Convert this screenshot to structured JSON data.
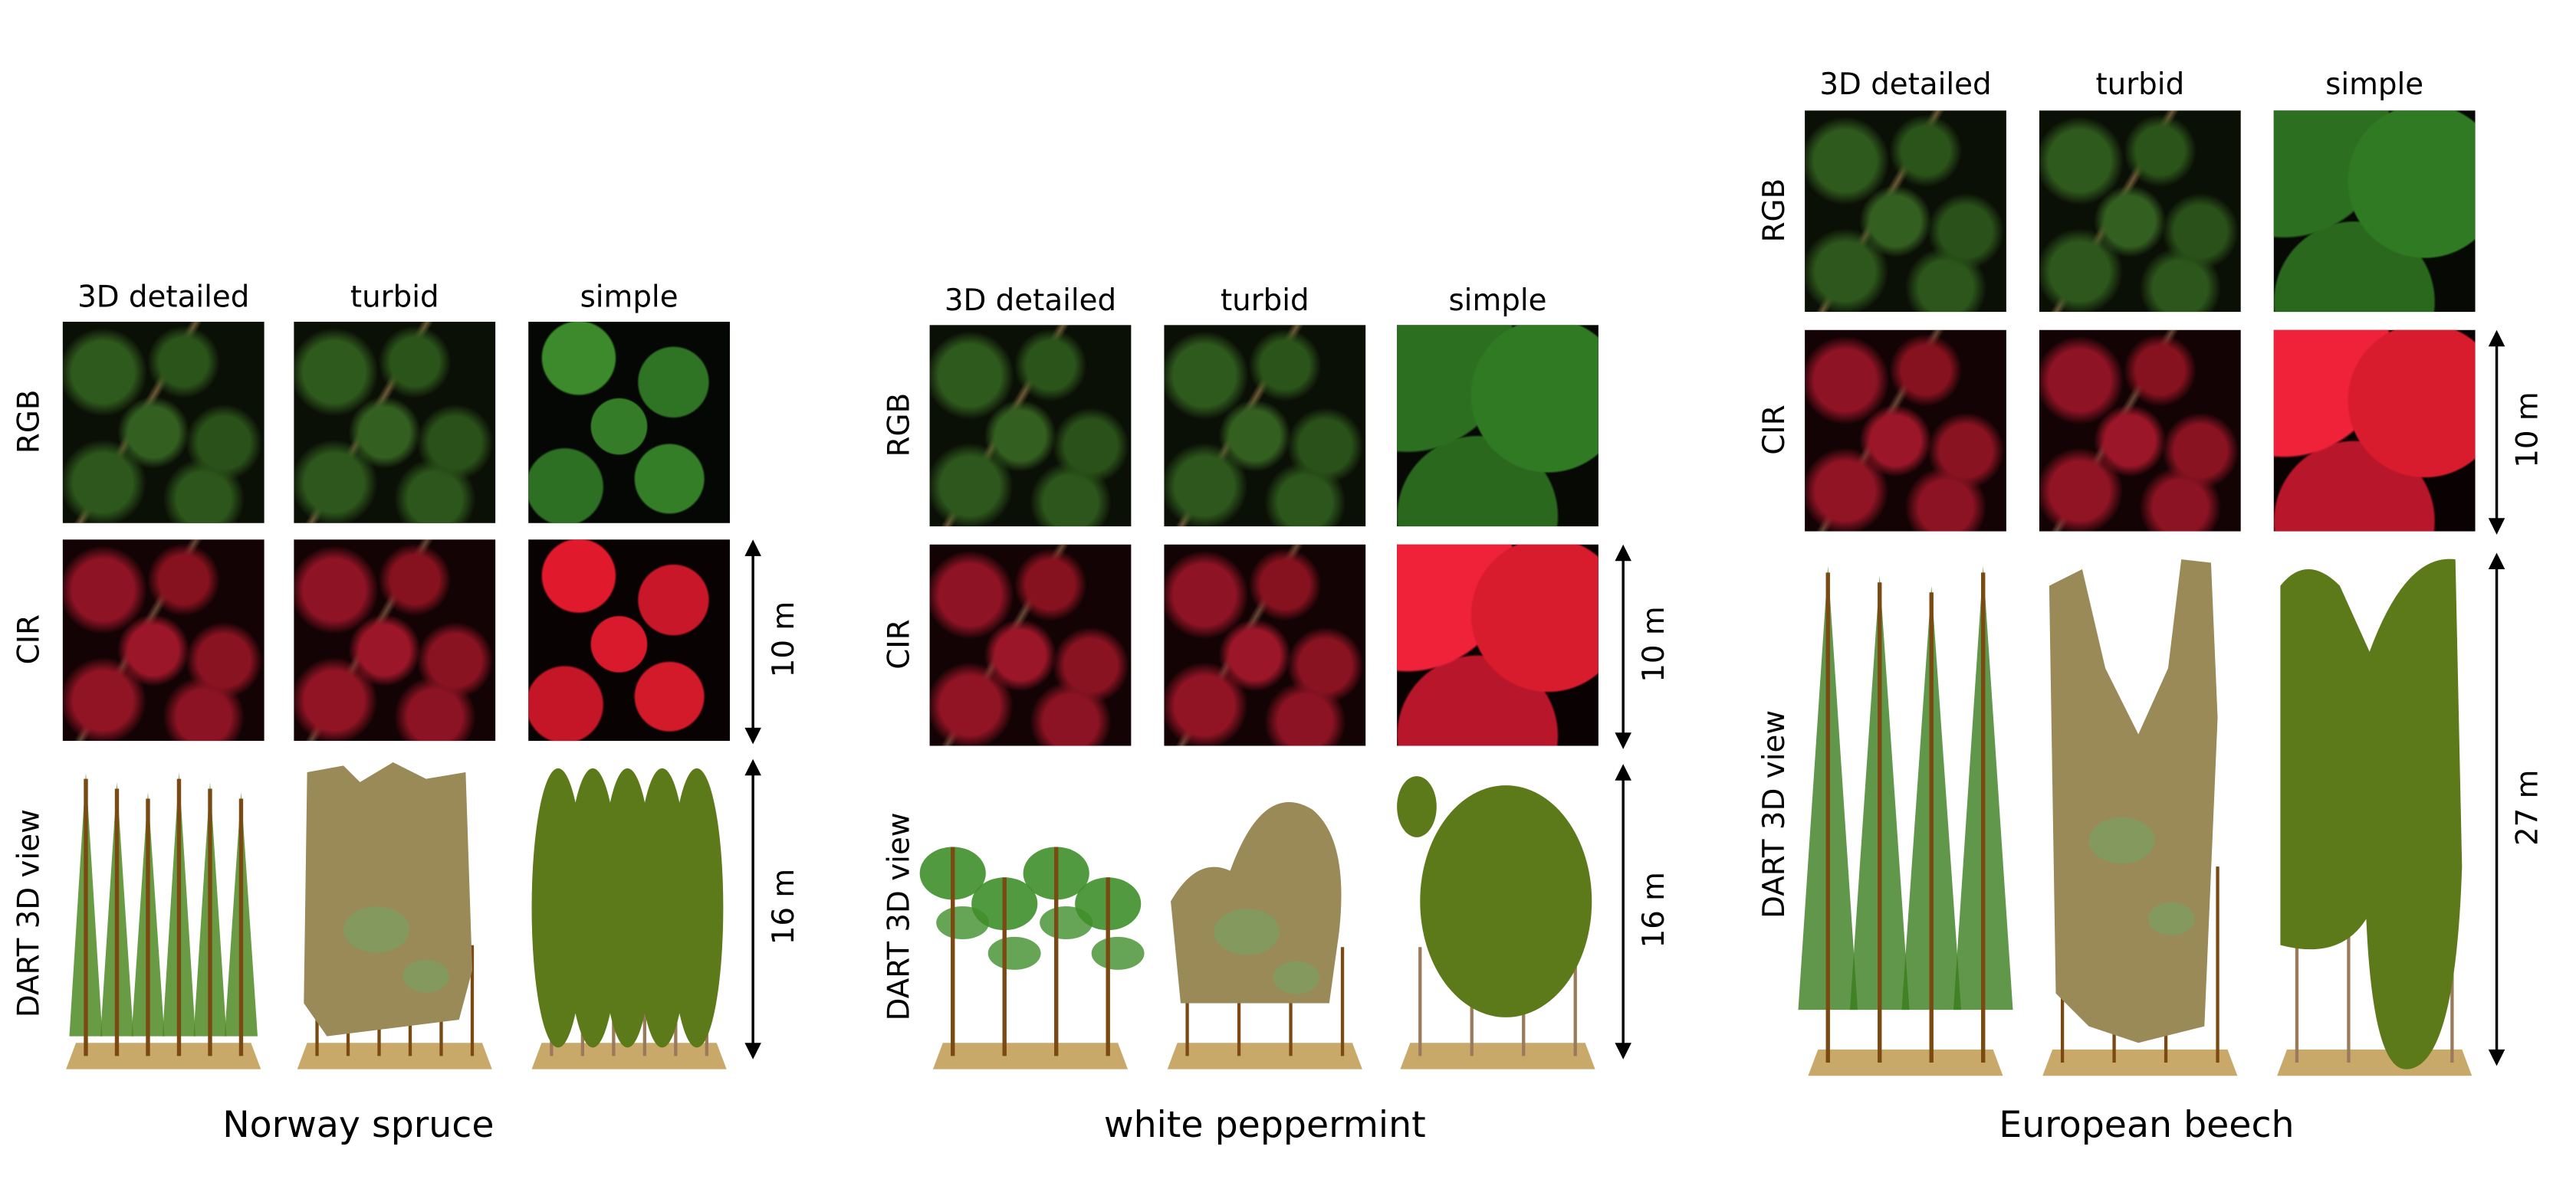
{
  "column_labels": [
    "3D detailed",
    "turbid",
    "simple"
  ],
  "row_labels": {
    "rgb": "RGB",
    "cir": "CIR",
    "view": "DART 3D view"
  },
  "panels": [
    {
      "title": "Norway spruce",
      "scale_top": "10 m",
      "scale_bottom": "16 m"
    },
    {
      "title": "white peppermint",
      "scale_top": "10 m",
      "scale_bottom": "16 m"
    },
    {
      "title": "European beech",
      "scale_top": "10 m",
      "scale_bottom": "27 m"
    }
  ],
  "colors": {
    "foliage_detailed": "#4e8a22",
    "foliage_turbid": "#9a8a58",
    "foliage_simple": "#5d7a1a",
    "trunk": "#7a4a12",
    "ground": "#c9a96a",
    "rgb_canopy": "#2f5a1d",
    "cir_canopy": "#c0182a"
  }
}
